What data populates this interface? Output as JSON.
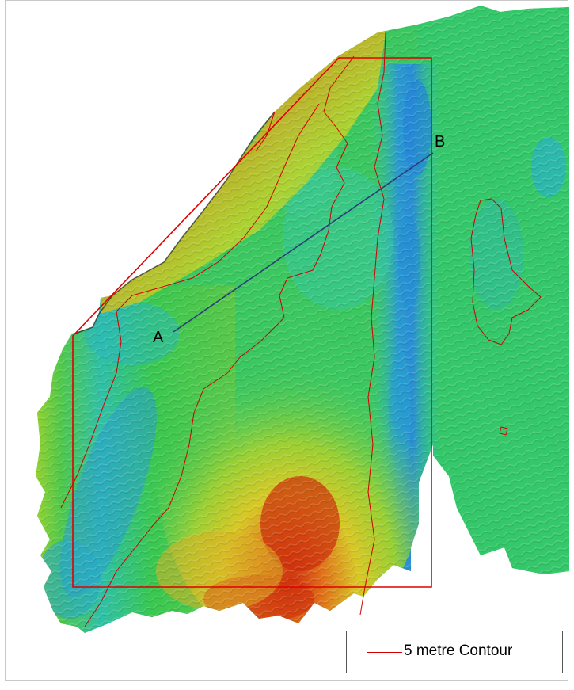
{
  "map": {
    "colors": {
      "deep": "#1a73c9",
      "mid_deep": "#1fb0c8",
      "mid": "#2ec84a",
      "shallow_mid": "#d4d424",
      "shallow": "#c81e0a",
      "contour": "#d00000",
      "survey_box": "#e00000",
      "profile_line": "#2a3c78"
    },
    "profile": {
      "start_label": "A",
      "end_label": "B"
    }
  },
  "legend": {
    "label": "5 metre Contour"
  }
}
